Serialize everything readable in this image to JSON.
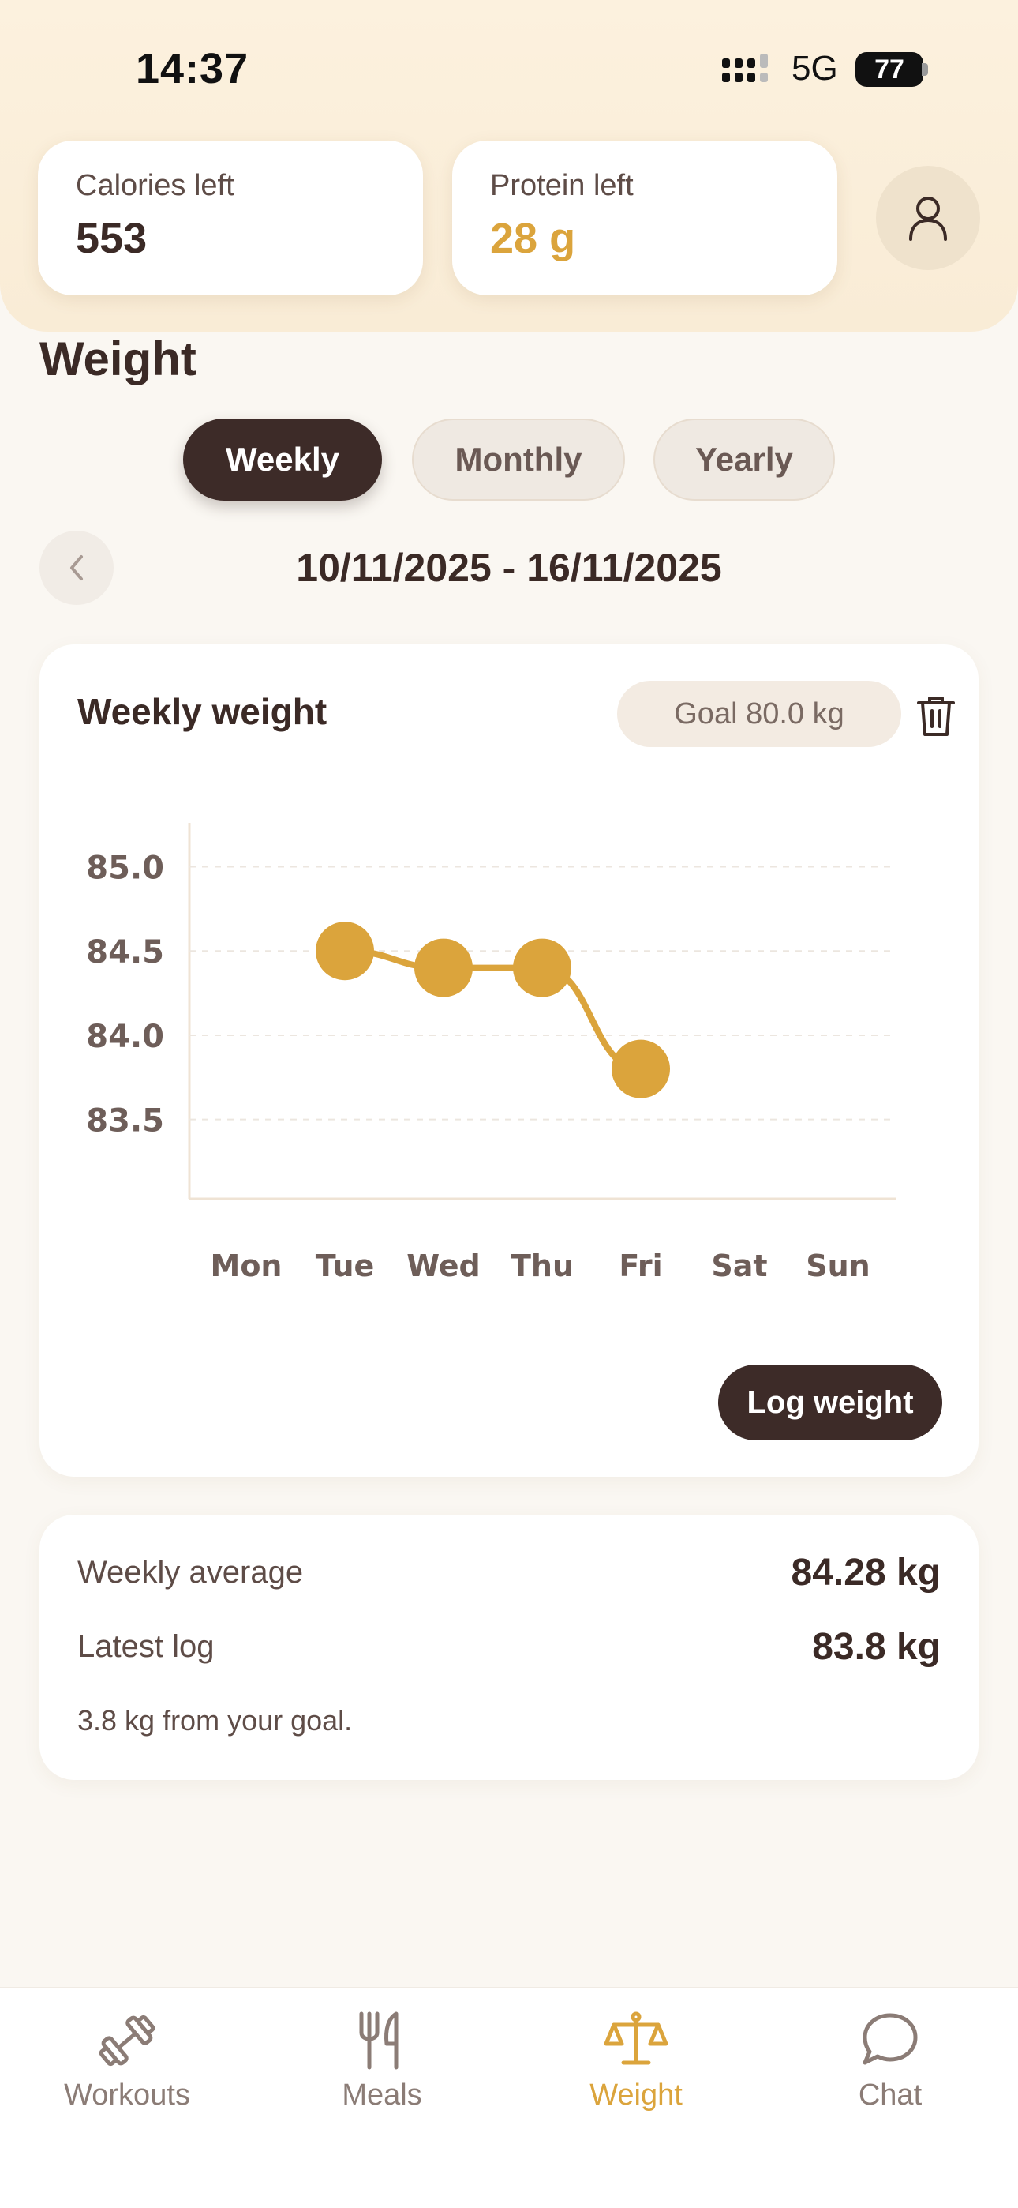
{
  "status_bar": {
    "time": "14:37",
    "network": "5G",
    "battery": "77"
  },
  "stats": {
    "calories": {
      "label": "Calories left",
      "value": "553"
    },
    "protein": {
      "label": "Protein left",
      "value": "28 g"
    }
  },
  "page": {
    "title": "Weight"
  },
  "period_tabs": [
    {
      "label": "Weekly",
      "active": true
    },
    {
      "label": "Monthly",
      "active": false
    },
    {
      "label": "Yearly",
      "active": false
    }
  ],
  "date_range": "10/11/2025 - 16/11/2025",
  "chart_card": {
    "title": "Weekly weight",
    "goal_label": "Goal 80.0 kg",
    "log_button": "Log weight"
  },
  "chart_data": {
    "type": "line",
    "categories": [
      "Mon",
      "Tue",
      "Wed",
      "Thu",
      "Fri",
      "Sat",
      "Sun"
    ],
    "series": [
      {
        "values": [
          null,
          84.5,
          84.4,
          84.4,
          83.8,
          null,
          null
        ]
      }
    ],
    "yticks": [
      "85.0",
      "84.5",
      "84.0",
      "83.5"
    ],
    "ylim": [
      83.03,
      85.26
    ],
    "grid": true,
    "color": "#dba43c"
  },
  "summary": {
    "avg_label": "Weekly average",
    "avg_value": "84.28 kg",
    "latest_label": "Latest log",
    "latest_value": "83.8 kg",
    "note": "3.8 kg from your goal."
  },
  "tabbar": [
    {
      "label": "Workouts",
      "icon": "dumbbell-icon",
      "active": false
    },
    {
      "label": "Meals",
      "icon": "fork-knife-icon",
      "active": false
    },
    {
      "label": "Weight",
      "icon": "scale-icon",
      "active": true
    },
    {
      "label": "Chat",
      "icon": "chat-bubble-icon",
      "active": false
    }
  ],
  "colors": {
    "accent": "#dba43c",
    "dark": "#3d2b28",
    "background": "#faf7f2"
  }
}
